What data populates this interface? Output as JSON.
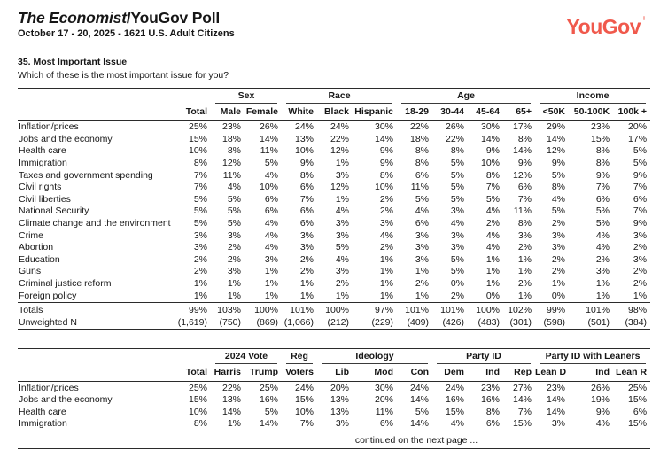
{
  "header": {
    "title_italic": "The Economist",
    "title_rest": "/YouGov Poll",
    "subtitle": "October 17 - 20, 2025 - 1621 U.S. Adult Citizens",
    "logo_text": "YouGov",
    "logo_color": "#F0594C"
  },
  "question": {
    "number_title": "35. Most Important Issue",
    "text": "Which of these is the most important issue for you?"
  },
  "table1": {
    "groups": [
      {
        "label": "",
        "span": 2
      },
      {
        "label": "Sex",
        "span": 2
      },
      {
        "label": "Race",
        "span": 3
      },
      {
        "label": "Age",
        "span": 4
      },
      {
        "label": "Income",
        "span": 3
      }
    ],
    "columns": [
      "Total",
      "Male",
      "Female",
      "White",
      "Black",
      "Hispanic",
      "18-29",
      "30-44",
      "45-64",
      "65+",
      "<50K",
      "50-100K",
      "100k +"
    ],
    "rows": [
      {
        "label": "Inflation/prices",
        "values": [
          "25%",
          "23%",
          "26%",
          "24%",
          "24%",
          "30%",
          "22%",
          "26%",
          "30%",
          "17%",
          "29%",
          "23%",
          "20%"
        ]
      },
      {
        "label": "Jobs and the economy",
        "values": [
          "15%",
          "18%",
          "14%",
          "13%",
          "22%",
          "14%",
          "18%",
          "22%",
          "14%",
          "8%",
          "14%",
          "15%",
          "17%"
        ]
      },
      {
        "label": "Health care",
        "values": [
          "10%",
          "8%",
          "11%",
          "10%",
          "12%",
          "9%",
          "8%",
          "8%",
          "9%",
          "14%",
          "12%",
          "8%",
          "5%"
        ]
      },
      {
        "label": "Immigration",
        "values": [
          "8%",
          "12%",
          "5%",
          "9%",
          "1%",
          "9%",
          "8%",
          "5%",
          "10%",
          "9%",
          "9%",
          "8%",
          "5%"
        ]
      },
      {
        "label": "Taxes and government spending",
        "values": [
          "7%",
          "11%",
          "4%",
          "8%",
          "3%",
          "8%",
          "6%",
          "5%",
          "8%",
          "12%",
          "5%",
          "9%",
          "9%"
        ]
      },
      {
        "label": "Civil rights",
        "values": [
          "7%",
          "4%",
          "10%",
          "6%",
          "12%",
          "10%",
          "11%",
          "5%",
          "7%",
          "6%",
          "8%",
          "7%",
          "7%"
        ]
      },
      {
        "label": "Civil liberties",
        "values": [
          "5%",
          "5%",
          "6%",
          "7%",
          "1%",
          "2%",
          "5%",
          "5%",
          "5%",
          "7%",
          "4%",
          "6%",
          "6%"
        ]
      },
      {
        "label": "National Security",
        "values": [
          "5%",
          "5%",
          "6%",
          "6%",
          "4%",
          "2%",
          "4%",
          "3%",
          "4%",
          "11%",
          "5%",
          "5%",
          "7%"
        ]
      },
      {
        "label": "Climate change and the environment",
        "values": [
          "5%",
          "5%",
          "4%",
          "6%",
          "3%",
          "3%",
          "6%",
          "4%",
          "2%",
          "8%",
          "2%",
          "5%",
          "9%"
        ]
      },
      {
        "label": "Crime",
        "values": [
          "3%",
          "3%",
          "4%",
          "3%",
          "3%",
          "4%",
          "3%",
          "3%",
          "4%",
          "3%",
          "3%",
          "4%",
          "3%"
        ]
      },
      {
        "label": "Abortion",
        "values": [
          "3%",
          "2%",
          "4%",
          "3%",
          "5%",
          "2%",
          "3%",
          "3%",
          "4%",
          "2%",
          "3%",
          "4%",
          "2%"
        ]
      },
      {
        "label": "Education",
        "values": [
          "2%",
          "2%",
          "3%",
          "2%",
          "4%",
          "1%",
          "3%",
          "5%",
          "1%",
          "1%",
          "2%",
          "2%",
          "3%"
        ]
      },
      {
        "label": "Guns",
        "values": [
          "2%",
          "3%",
          "1%",
          "2%",
          "3%",
          "1%",
          "1%",
          "5%",
          "1%",
          "1%",
          "2%",
          "3%",
          "2%"
        ]
      },
      {
        "label": "Criminal justice reform",
        "values": [
          "1%",
          "1%",
          "1%",
          "1%",
          "2%",
          "1%",
          "2%",
          "0%",
          "1%",
          "2%",
          "1%",
          "1%",
          "2%"
        ]
      },
      {
        "label": "Foreign policy",
        "values": [
          "1%",
          "1%",
          "1%",
          "1%",
          "1%",
          "1%",
          "1%",
          "2%",
          "0%",
          "1%",
          "0%",
          "1%",
          "1%"
        ]
      }
    ],
    "summary": [
      {
        "label": "Totals",
        "values": [
          "99%",
          "103%",
          "100%",
          "101%",
          "100%",
          "97%",
          "101%",
          "101%",
          "100%",
          "102%",
          "99%",
          "101%",
          "98%"
        ]
      },
      {
        "label": "Unweighted N",
        "values": [
          "(1,619)",
          "(750)",
          "(869)",
          "(1,066)",
          "(212)",
          "(229)",
          "(409)",
          "(426)",
          "(483)",
          "(301)",
          "(598)",
          "(501)",
          "(384)"
        ]
      }
    ]
  },
  "table2": {
    "groups": [
      {
        "label": "",
        "span": 2
      },
      {
        "label": "2024 Vote",
        "span": 2
      },
      {
        "label": "Reg",
        "span": 1
      },
      {
        "label": "Ideology",
        "span": 3
      },
      {
        "label": "Party ID",
        "span": 3
      },
      {
        "label": "Party ID with Leaners",
        "span": 3
      }
    ],
    "columns": [
      "Total",
      "Harris",
      "Trump",
      "Voters",
      "Lib",
      "Mod",
      "Con",
      "Dem",
      "Ind",
      "Rep",
      "Lean D",
      "Ind",
      "Lean R"
    ],
    "rows": [
      {
        "label": "Inflation/prices",
        "values": [
          "25%",
          "22%",
          "25%",
          "24%",
          "20%",
          "30%",
          "24%",
          "24%",
          "23%",
          "27%",
          "23%",
          "26%",
          "25%"
        ]
      },
      {
        "label": "Jobs and the economy",
        "values": [
          "15%",
          "13%",
          "16%",
          "15%",
          "13%",
          "20%",
          "14%",
          "16%",
          "16%",
          "14%",
          "14%",
          "19%",
          "15%"
        ]
      },
      {
        "label": "Health care",
        "values": [
          "10%",
          "14%",
          "5%",
          "10%",
          "13%",
          "11%",
          "5%",
          "15%",
          "8%",
          "7%",
          "14%",
          "9%",
          "6%"
        ]
      },
      {
        "label": "Immigration",
        "values": [
          "8%",
          "1%",
          "14%",
          "7%",
          "3%",
          "6%",
          "14%",
          "4%",
          "6%",
          "15%",
          "3%",
          "4%",
          "15%"
        ]
      }
    ]
  },
  "footer": {
    "continued": "continued on the next page ..."
  }
}
